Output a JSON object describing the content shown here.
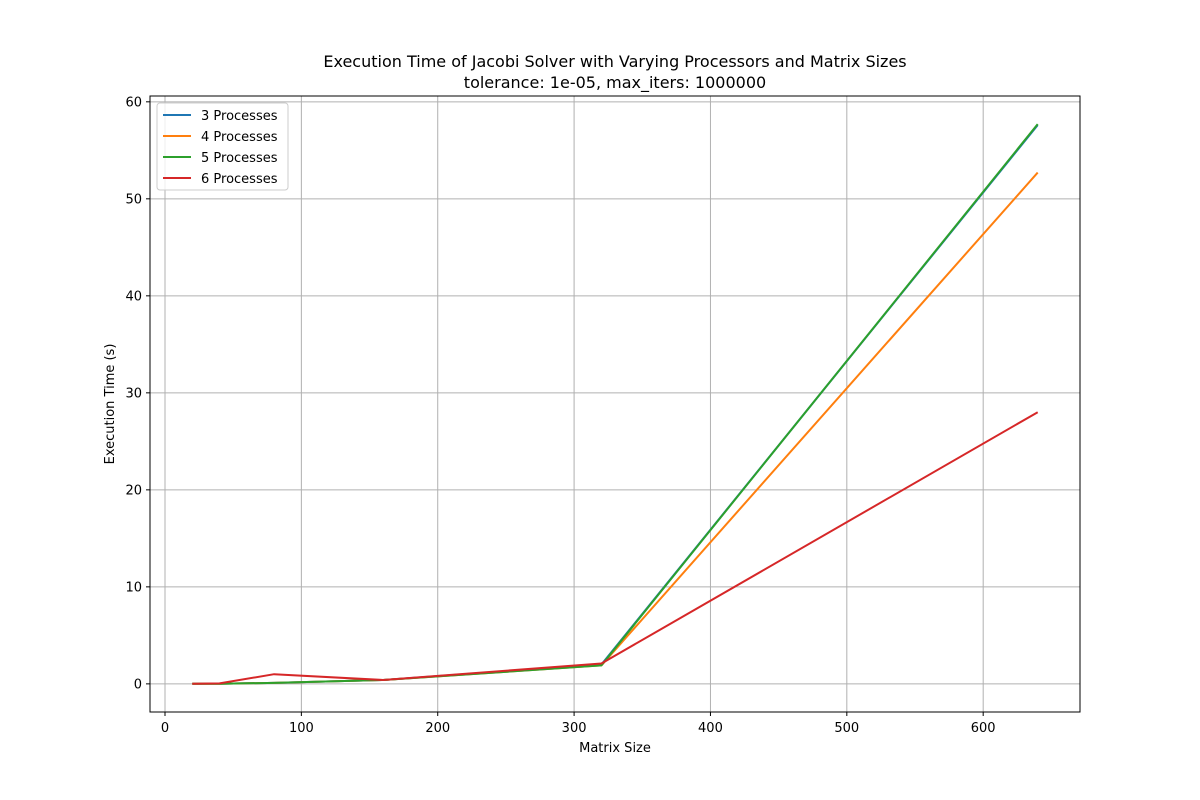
{
  "chart_data": {
    "type": "line",
    "title": "Execution Time of Jacobi Solver with Varying Processors and Matrix Sizes",
    "subtitle": "tolerance: 1e-05, max_iters: 1000000",
    "xlabel": "Matrix Size",
    "ylabel": "Execution Time (s)",
    "xlim": [
      -11,
      671
    ],
    "ylim": [
      -2.9,
      60.6
    ],
    "xticks": [
      0,
      100,
      200,
      300,
      400,
      500,
      600
    ],
    "yticks": [
      0,
      10,
      20,
      30,
      40,
      50,
      60
    ],
    "grid": true,
    "legend_position": "top-left",
    "x": [
      20,
      40,
      80,
      160,
      320,
      640
    ],
    "series": [
      {
        "name": "3 Processes",
        "color": "#1f77b4",
        "values": [
          0.01,
          0.02,
          0.1,
          0.4,
          2.0,
          57.6
        ]
      },
      {
        "name": "4 Processes",
        "color": "#ff7f0e",
        "values": [
          0.01,
          0.02,
          0.1,
          0.4,
          1.9,
          52.7
        ]
      },
      {
        "name": "5 Processes",
        "color": "#2ca02c",
        "values": [
          0.01,
          0.02,
          0.1,
          0.4,
          1.9,
          57.7
        ]
      },
      {
        "name": "6 Processes",
        "color": "#d62728",
        "values": [
          0.02,
          0.05,
          1.0,
          0.4,
          2.1,
          28.0
        ]
      }
    ]
  }
}
